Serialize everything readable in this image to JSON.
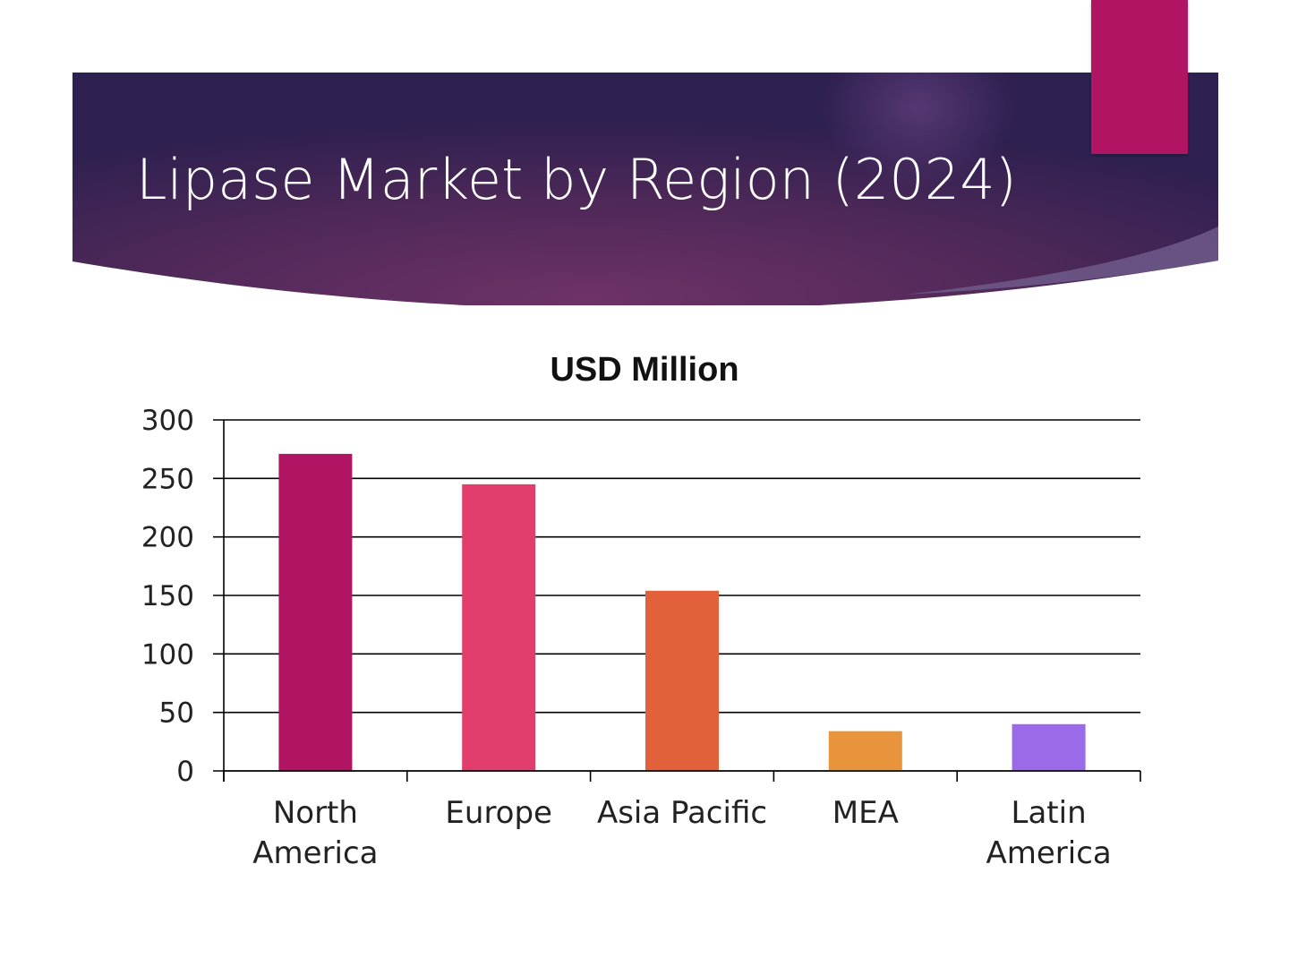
{
  "slide": {
    "title": "Lipase Market by Region (2024)"
  },
  "colors": {
    "banner_dark": "#2f2150",
    "banner_mid": "#6a2f63",
    "accent": "#b11462",
    "gridline": "#000000"
  },
  "chart_data": {
    "type": "bar",
    "title": "USD Million",
    "xlabel": "",
    "ylabel": "",
    "categories": [
      "North America",
      "Europe",
      "Asia Pacific",
      "MEA",
      "Latin America"
    ],
    "category_lines": [
      [
        "North",
        "America"
      ],
      [
        "Europe"
      ],
      [
        "Asia Pacific"
      ],
      [
        "MEA"
      ],
      [
        "Latin",
        "America"
      ]
    ],
    "values": [
      271,
      245,
      154,
      34,
      40
    ],
    "colors": [
      "#b11462",
      "#e13e6e",
      "#e2603a",
      "#e8943d",
      "#9b6ae8"
    ],
    "ylim": [
      0,
      300
    ],
    "yticks": [
      0,
      50,
      100,
      150,
      200,
      250,
      300
    ],
    "grid": true,
    "legend": "none"
  }
}
